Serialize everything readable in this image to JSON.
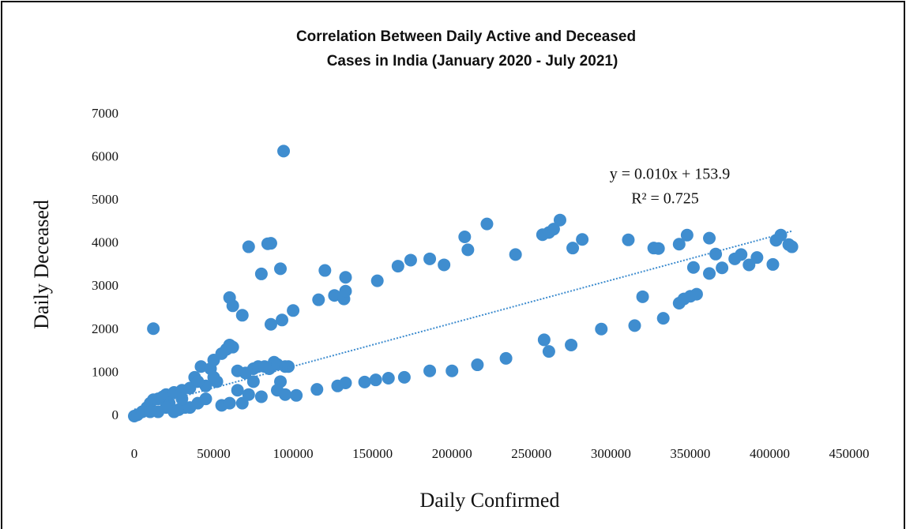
{
  "chart_data": {
    "type": "scatter",
    "title": [
      "Correlation Between Daily Active and Deceased",
      "Cases in  India (January 2020 - July 2021)"
    ],
    "xlabel": "Daily Confirmed",
    "ylabel": "Daily Deceased",
    "color": "#3f8dcf",
    "xlim": [
      0,
      450000
    ],
    "ylim": [
      0,
      7000
    ],
    "xticks": [
      0,
      50000,
      100000,
      150000,
      200000,
      250000,
      300000,
      350000,
      400000,
      450000
    ],
    "yticks": [
      0,
      1000,
      2000,
      3000,
      4000,
      5000,
      6000,
      7000
    ],
    "grid": false,
    "trendline": {
      "label": "y = 0.010x + 153.9",
      "slope": 0.01,
      "intercept": 153.9,
      "r2_label": "R² = 0.725",
      "color": "#3f8dcf"
    },
    "x": [
      0,
      2000,
      5000,
      8000,
      10000,
      12000,
      15000,
      18000,
      20000,
      22000,
      25000,
      28000,
      30000,
      32000,
      35000,
      38000,
      40000,
      42000,
      45000,
      48000,
      50000,
      52000,
      55000,
      58000,
      60000,
      62000,
      55000,
      60000,
      65000,
      68000,
      70000,
      72000,
      75000,
      78000,
      80000,
      82000,
      85000,
      88000,
      90000,
      92000,
      95000,
      97000,
      90000,
      15000,
      25000,
      35000,
      45000,
      30000,
      20000,
      10000,
      40000,
      50000,
      65000,
      75000,
      12000,
      60000,
      62000,
      68000,
      72000,
      80000,
      84000,
      86000,
      86000,
      92000,
      93000,
      94000,
      100000,
      116000,
      120000,
      126000,
      132000,
      133000,
      133000,
      153000,
      166000,
      174000,
      186000,
      195000,
      208000,
      210000,
      222000,
      240000,
      257000,
      261000,
      264000,
      268000,
      276000,
      282000,
      311000,
      327000,
      330000,
      343000,
      348000,
      362000,
      366000,
      370000,
      362000,
      352000,
      378000,
      382000,
      387000,
      392000,
      402000,
      404000,
      407000,
      412000,
      414000,
      95000,
      102000,
      115000,
      128000,
      133000,
      145000,
      152000,
      160000,
      170000,
      186000,
      200000,
      216000,
      234000,
      258000,
      261000,
      275000,
      294000,
      315000,
      320000,
      333000,
      343000,
      346000,
      350000,
      354000
    ],
    "values": [
      0,
      30,
      100,
      200,
      300,
      380,
      400,
      450,
      500,
      300,
      550,
      150,
      600,
      200,
      650,
      900,
      300,
      1150,
      400,
      1100,
      1300,
      800,
      1450,
      1550,
      1650,
      1600,
      250,
      300,
      1050,
      300,
      1000,
      500,
      1100,
      1150,
      450,
      1150,
      1100,
      1250,
      1200,
      800,
      1150,
      1150,
      600,
      100,
      100,
      200,
      700,
      400,
      200,
      100,
      800,
      900,
      600,
      800,
      2030,
      2750,
      2560,
      2340,
      3930,
      3300,
      4000,
      4010,
      2130,
      3420,
      2230,
      6150,
      2450,
      2700,
      3380,
      2800,
      2720,
      2900,
      3220,
      3140,
      3480,
      3620,
      3650,
      3510,
      4160,
      3860,
      4460,
      3750,
      4210,
      4260,
      4340,
      4550,
      3900,
      4100,
      4090,
      3900,
      3890,
      3990,
      4200,
      4130,
      3760,
      3440,
      3310,
      3450,
      3650,
      3750,
      3510,
      3680,
      3520,
      4080,
      4200,
      3980,
      3930,
      500,
      480,
      620,
      700,
      770,
      790,
      840,
      880,
      900,
      1050,
      1050,
      1190,
      1340,
      1770,
      1500,
      1650,
      2020,
      2100,
      2770,
      2270,
      2620,
      2720,
      2780,
      2830
    ]
  }
}
